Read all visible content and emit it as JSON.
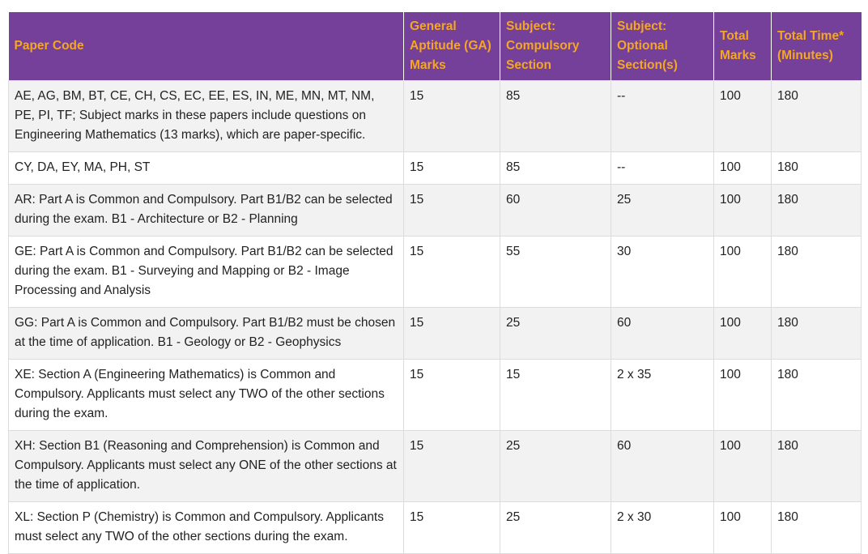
{
  "table": {
    "headers": [
      "Paper Code",
      "General Aptitude (GA) Marks",
      "Subject: Compulsory Section",
      "Subject: Optional Section(s)",
      "Total Marks",
      "Total Time* (Minutes)"
    ],
    "rows": [
      [
        "AE, AG, BM, BT, CE, CH, CS, EC, EE, ES, IN, ME, MN, MT, NM, PE, PI, TF; Subject marks in these papers include questions on Engineering Mathematics (13 marks), which are paper-specific.",
        "15",
        "85",
        "--",
        "100",
        "180"
      ],
      [
        "CY, DA, EY, MA, PH, ST",
        "15",
        "85",
        "--",
        "100",
        "180"
      ],
      [
        "AR: Part A is Common and Compulsory. Part B1/B2 can be selected during the exam. B1 - Architecture or B2 - Planning",
        "15",
        "60",
        "25",
        "100",
        "180"
      ],
      [
        "GE: Part A is Common and Compulsory. Part B1/B2 can be selected during the exam. B1 - Surveying and Mapping or B2 - Image Processing and Analysis",
        "15",
        "55",
        "30",
        "100",
        "180"
      ],
      [
        "GG: Part A is Common and Compulsory. Part B1/B2 must be chosen at the time of application. B1 - Geology or B2 - Geophysics",
        "15",
        "25",
        "60",
        "100",
        "180"
      ],
      [
        "XE: Section A (Engineering Mathematics) is Common and Compulsory. Applicants must select any TWO of the other sections during the exam.",
        "15",
        "15",
        "2 x 35",
        "100",
        "180"
      ],
      [
        "XH: Section B1 (Reasoning and Comprehension) is Common and Compulsory. Applicants must select any ONE of the other sections at the time of application.",
        "15",
        "25",
        "60",
        "100",
        "180"
      ],
      [
        "XL: Section P (Chemistry) is Common and Compulsory. Applicants must select any TWO of the other sections during the exam.",
        "15",
        "25",
        "2 x 30",
        "100",
        "180"
      ]
    ]
  },
  "colors": {
    "header_bg": "#74409a",
    "header_text": "#f5a623",
    "row_alt_bg": "#f2f2f2",
    "border": "#dcdcdc"
  }
}
